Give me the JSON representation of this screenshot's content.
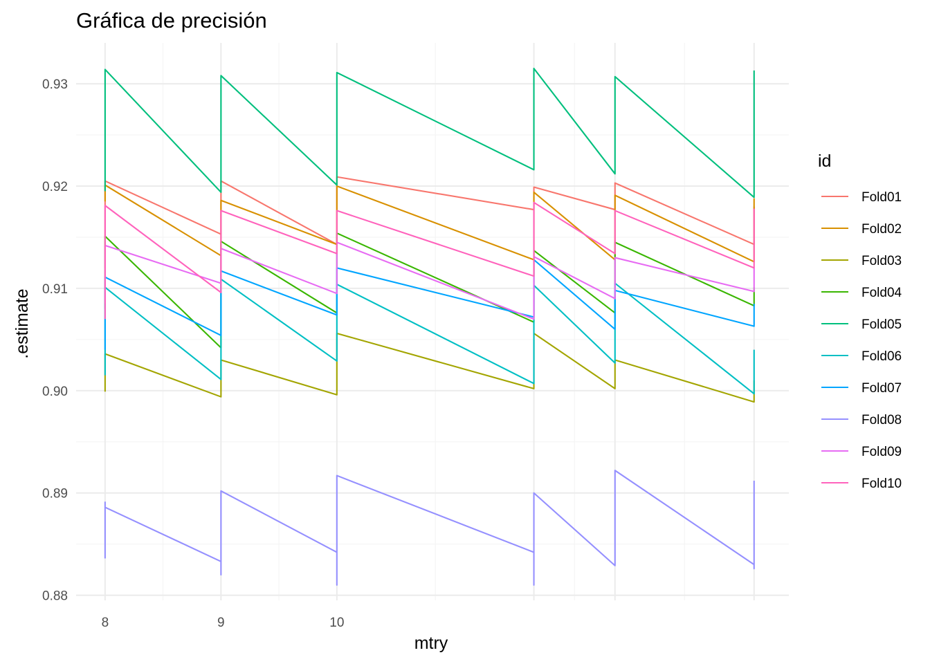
{
  "chart_data": {
    "type": "line",
    "title": "Gráfica de precisión",
    "xlabel": "mtry",
    "ylabel": ".estimate",
    "x_ticks": [
      8,
      9,
      10
    ],
    "x_tick_labels": [
      "8",
      "9",
      "10"
    ],
    "x_breaks": [
      8,
      9,
      10,
      11.7,
      12.4,
      13.6
    ],
    "xlim": [
      7.75,
      13.9
    ],
    "ylim": [
      0.8795,
      0.934
    ],
    "y_ticks": [
      0.88,
      0.89,
      0.9,
      0.91,
      0.92,
      0.93
    ],
    "y_tick_labels": [
      "0.88",
      "0.89",
      "0.90",
      "0.91",
      "0.92",
      "0.93"
    ],
    "grid": true,
    "legend": {
      "title": "id",
      "position": "right"
    },
    "series": [
      {
        "name": "Fold01",
        "color": "#F8766D",
        "points": [
          [
            8,
            0.912
          ],
          [
            8,
            0.9205
          ],
          [
            9,
            0.9153
          ],
          [
            9,
            0.9205
          ],
          [
            10,
            0.9143
          ],
          [
            10,
            0.9209
          ],
          [
            11.7,
            0.9177
          ],
          [
            11.7,
            0.9199
          ],
          [
            12.4,
            0.9177
          ],
          [
            12.4,
            0.9203
          ],
          [
            13.6,
            0.9143
          ],
          [
            13.6,
            0.918
          ]
        ]
      },
      {
        "name": "Fold02",
        "color": "#D89000",
        "points": [
          [
            8,
            0.9185
          ],
          [
            8,
            0.9201
          ],
          [
            9,
            0.9132
          ],
          [
            9,
            0.9186
          ],
          [
            10,
            0.9143
          ],
          [
            10,
            0.92
          ],
          [
            11.7,
            0.9128
          ],
          [
            11.7,
            0.9194
          ],
          [
            12.4,
            0.9128
          ],
          [
            12.4,
            0.9191
          ],
          [
            13.6,
            0.9126
          ],
          [
            13.6,
            0.9188
          ]
        ]
      },
      {
        "name": "Fold03",
        "color": "#A3A500",
        "points": [
          [
            8,
            0.8999
          ],
          [
            8,
            0.9014
          ],
          [
            8,
            0.9036
          ],
          [
            9,
            0.8994
          ],
          [
            9,
            0.903
          ],
          [
            10,
            0.8996
          ],
          [
            10,
            0.9026
          ],
          [
            10,
            0.9056
          ],
          [
            11.7,
            0.9002
          ],
          [
            11.7,
            0.9056
          ],
          [
            12.4,
            0.9002
          ],
          [
            12.4,
            0.903
          ],
          [
            13.6,
            0.8989
          ],
          [
            13.6,
            0.901
          ]
        ]
      },
      {
        "name": "Fold04",
        "color": "#39B600",
        "points": [
          [
            8,
            0.908
          ],
          [
            8,
            0.9151
          ],
          [
            9,
            0.9042
          ],
          [
            9,
            0.9146
          ],
          [
            10,
            0.9076
          ],
          [
            10,
            0.9154
          ],
          [
            11.7,
            0.9067
          ],
          [
            11.7,
            0.9137
          ],
          [
            12.4,
            0.9076
          ],
          [
            12.4,
            0.9145
          ],
          [
            13.6,
            0.9083
          ],
          [
            13.6,
            0.9101
          ]
        ]
      },
      {
        "name": "Fold05",
        "color": "#00BF7D",
        "points": [
          [
            8,
            0.9195
          ],
          [
            8,
            0.9314
          ],
          [
            9,
            0.9194
          ],
          [
            9,
            0.9308
          ],
          [
            10,
            0.9201
          ],
          [
            10,
            0.9311
          ],
          [
            11.7,
            0.9216
          ],
          [
            11.7,
            0.9315
          ],
          [
            12.4,
            0.9212
          ],
          [
            12.4,
            0.9307
          ],
          [
            13.6,
            0.9189
          ],
          [
            13.6,
            0.9313
          ]
        ]
      },
      {
        "name": "Fold06",
        "color": "#00BFC4",
        "points": [
          [
            8,
            0.9015
          ],
          [
            8,
            0.9101
          ],
          [
            9,
            0.9011
          ],
          [
            9,
            0.9109
          ],
          [
            10,
            0.9029
          ],
          [
            10,
            0.9104
          ],
          [
            11.7,
            0.9007
          ],
          [
            11.7,
            0.9103
          ],
          [
            12.4,
            0.9027
          ],
          [
            12.4,
            0.9105
          ],
          [
            13.6,
            0.8997
          ],
          [
            13.6,
            0.904
          ]
        ]
      },
      {
        "name": "Fold07",
        "color": "#00A5FF",
        "points": [
          [
            8,
            0.904
          ],
          [
            8,
            0.9071
          ],
          [
            8,
            0.9111
          ],
          [
            9,
            0.9054
          ],
          [
            9,
            0.9117
          ],
          [
            10,
            0.9074
          ],
          [
            10,
            0.912
          ],
          [
            11.7,
            0.9072
          ],
          [
            11.7,
            0.9128
          ],
          [
            12.4,
            0.906
          ],
          [
            12.4,
            0.9098
          ],
          [
            13.6,
            0.9063
          ],
          [
            13.6,
            0.9085
          ]
        ]
      },
      {
        "name": "Fold08",
        "color": "#9590FF",
        "points": [
          [
            8,
            0.8836
          ],
          [
            8,
            0.8891
          ],
          [
            8,
            0.8886
          ],
          [
            9,
            0.8833
          ],
          [
            9,
            0.882
          ],
          [
            9,
            0.8902
          ],
          [
            10,
            0.8842
          ],
          [
            10,
            0.881
          ],
          [
            10,
            0.8917
          ],
          [
            11.7,
            0.8842
          ],
          [
            11.7,
            0.881
          ],
          [
            11.7,
            0.89
          ],
          [
            12.4,
            0.8829
          ],
          [
            12.4,
            0.8922
          ],
          [
            13.6,
            0.883
          ],
          [
            13.6,
            0.8826
          ],
          [
            13.6,
            0.8912
          ]
        ]
      },
      {
        "name": "Fold09",
        "color": "#E76BF3",
        "points": [
          [
            8,
            0.9085
          ],
          [
            8,
            0.9142
          ],
          [
            9,
            0.9105
          ],
          [
            9,
            0.9139
          ],
          [
            10,
            0.9095
          ],
          [
            10,
            0.9145
          ],
          [
            11.7,
            0.907
          ],
          [
            11.7,
            0.9131
          ],
          [
            12.4,
            0.909
          ],
          [
            12.4,
            0.913
          ],
          [
            13.6,
            0.9097
          ],
          [
            13.6,
            0.912
          ]
        ]
      },
      {
        "name": "Fold10",
        "color": "#FF62BC",
        "points": [
          [
            8,
            0.907
          ],
          [
            8,
            0.9181
          ],
          [
            9,
            0.9096
          ],
          [
            9,
            0.9176
          ],
          [
            10,
            0.9134
          ],
          [
            10,
            0.9176
          ],
          [
            11.7,
            0.9112
          ],
          [
            11.7,
            0.9184
          ],
          [
            12.4,
            0.9134
          ],
          [
            12.4,
            0.9176
          ],
          [
            13.6,
            0.912
          ],
          [
            13.6,
            0.9178
          ]
        ]
      }
    ]
  }
}
